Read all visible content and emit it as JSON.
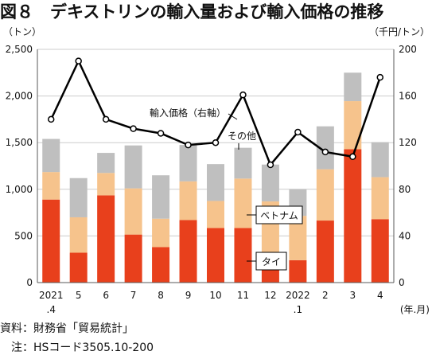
{
  "figure_title": "図８　デキストリンの輸入量および輸入価格の推移",
  "notes": {
    "source": "資料：財務省「貿易統計」",
    "hs": "　注：HSコード3505.10-200"
  },
  "colors": {
    "thailand": "#e8401c",
    "vietnam": "#f6c38c",
    "other": "#bfbfbf",
    "line": "#000000",
    "axis": "#595959",
    "grid": "#cccccc"
  },
  "chart_data": {
    "type": "bar",
    "stacked": true,
    "categories": [
      [
        "2021",
        ".4"
      ],
      [
        "5"
      ],
      [
        "6"
      ],
      [
        "7"
      ],
      [
        "8"
      ],
      [
        "9"
      ],
      [
        "10"
      ],
      [
        "11"
      ],
      [
        "12"
      ],
      [
        "2022",
        ".1"
      ],
      [
        "2"
      ],
      [
        "3"
      ],
      [
        "4"
      ]
    ],
    "xlabel": "(年.月)",
    "ylabel_left": "（トン）",
    "ylabel_right": "（千円/トン）",
    "ylim_left": [
      0,
      2500
    ],
    "ylim_right": [
      0,
      200
    ],
    "yticks_left": [
      "0",
      "500",
      "1,000",
      "1,500",
      "2,000",
      "2,500"
    ],
    "yticks_right": [
      "0",
      "40",
      "80",
      "120",
      "160",
      "200"
    ],
    "grid": true,
    "series": [
      {
        "name": "タイ",
        "values": [
          890,
          320,
          935,
          515,
          380,
          670,
          585,
          585,
          135,
          240,
          665,
          1430,
          680
        ]
      },
      {
        "name": "ベトナム",
        "values": [
          295,
          380,
          240,
          495,
          305,
          415,
          290,
          530,
          735,
          475,
          550,
          515,
          450
        ]
      },
      {
        "name": "その他",
        "values": [
          355,
          420,
          215,
          460,
          465,
          390,
          395,
          330,
          395,
          285,
          460,
          305,
          375
        ]
      }
    ],
    "line_series": {
      "name": "輸入価格（右軸）",
      "axis": "right",
      "values": [
        140,
        190,
        140,
        132,
        128,
        118,
        120,
        161,
        101,
        129,
        112,
        108,
        176
      ]
    }
  }
}
